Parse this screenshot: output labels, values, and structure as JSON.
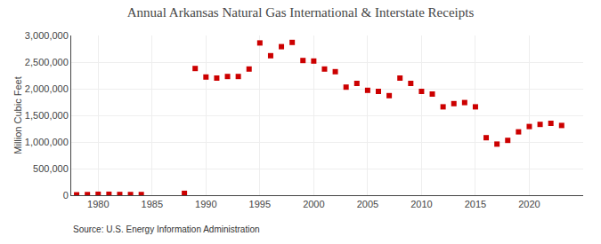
{
  "chart_data": {
    "type": "scatter",
    "title": "Annual Arkansas Natural Gas International & Interstate Receipts",
    "ylabel": "Million Cubic Feet",
    "annotations": [
      "Source: U.S. Energy Information Administration"
    ],
    "x": [
      1978,
      1979,
      1980,
      1981,
      1982,
      1983,
      1984,
      1988,
      1989,
      1990,
      1991,
      1992,
      1993,
      1994,
      1995,
      1996,
      1997,
      1998,
      1999,
      2000,
      2001,
      2002,
      2003,
      2004,
      2005,
      2006,
      2007,
      2008,
      2009,
      2010,
      2011,
      2012,
      2013,
      2014,
      2015,
      2016,
      2017,
      2018,
      2019,
      2020,
      2021,
      2022,
      2023
    ],
    "values": [
      8000,
      12000,
      18000,
      18000,
      14000,
      13000,
      13000,
      35000,
      2380000,
      2220000,
      2200000,
      2230000,
      2230000,
      2370000,
      2860000,
      2620000,
      2790000,
      2870000,
      2530000,
      2520000,
      2370000,
      2320000,
      2030000,
      2100000,
      1970000,
      1950000,
      1870000,
      2200000,
      2100000,
      1950000,
      1900000,
      1660000,
      1720000,
      1740000,
      1660000,
      1080000,
      960000,
      1030000,
      1190000,
      1290000,
      1330000,
      1350000,
      1310000
    ],
    "color": "#cc0000",
    "marker": "square",
    "xlim": [
      1977.5,
      2025
    ],
    "xticks": [
      1980,
      1985,
      1990,
      1995,
      2000,
      2005,
      2010,
      2015,
      2020
    ],
    "ylim": [
      0,
      3000000
    ],
    "yticks": [
      0,
      {
        "value": 500000,
        "label": "500,000"
      },
      {
        "value": 1000000,
        "label": "1,000,000"
      },
      {
        "value": 1500000,
        "label": "1,500,000"
      },
      {
        "value": 2000000,
        "label": "2,000,000"
      },
      {
        "value": 2500000,
        "label": "2,500,000"
      },
      {
        "value": 3000000,
        "label": "3,000,000"
      }
    ],
    "grid": true
  }
}
